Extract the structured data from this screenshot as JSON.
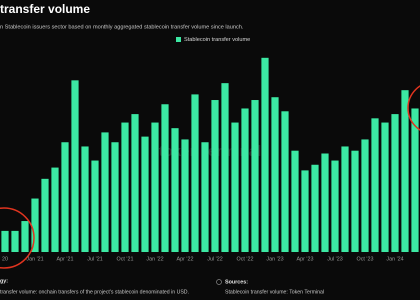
{
  "chart_data": {
    "type": "bar",
    "title": "transfer volume",
    "subtitle": "n Stablecoin issuers sector based on monthly aggregated stablecoin transfer volume since launch.",
    "watermark": "token terminal",
    "categories": [
      "20",
      null,
      null,
      "Jan '21",
      null,
      null,
      "Apr '21",
      null,
      null,
      "Jul '21",
      null,
      null,
      "Oct '21",
      null,
      null,
      "Jan '22",
      null,
      null,
      "Apr '22",
      null,
      null,
      "Jul '22",
      null,
      null,
      "Oct '22",
      null,
      null,
      "Jan '23",
      null,
      null,
      "Apr '23",
      null,
      null,
      "Jul '23",
      null,
      null,
      "Oct '23",
      null,
      null,
      "Jan '24",
      null,
      null
    ],
    "series": [
      {
        "name": "Stablecoin transfer volume",
        "color": "#3ce8a3",
        "values": [
          15,
          15,
          22,
          38,
          52,
          60,
          78,
          122,
          75,
          65,
          85,
          78,
          92,
          98,
          82,
          92,
          105,
          88,
          80,
          112,
          78,
          108,
          120,
          92,
          102,
          108,
          138,
          110,
          100,
          72,
          58,
          62,
          70,
          65,
          75,
          72,
          80,
          95,
          92,
          98,
          115,
          102
        ]
      }
    ],
    "ylim": [
      0,
      140
    ],
    "grid": false
  },
  "footer": {
    "methodology_heading": "gy:",
    "methodology_text": "transfer volume: onchain transfers of the project's stablecoin denominated in USD.",
    "sources_heading": "Sources:",
    "sources_text": "Stablecoin transfer volume: Token Terminal"
  }
}
